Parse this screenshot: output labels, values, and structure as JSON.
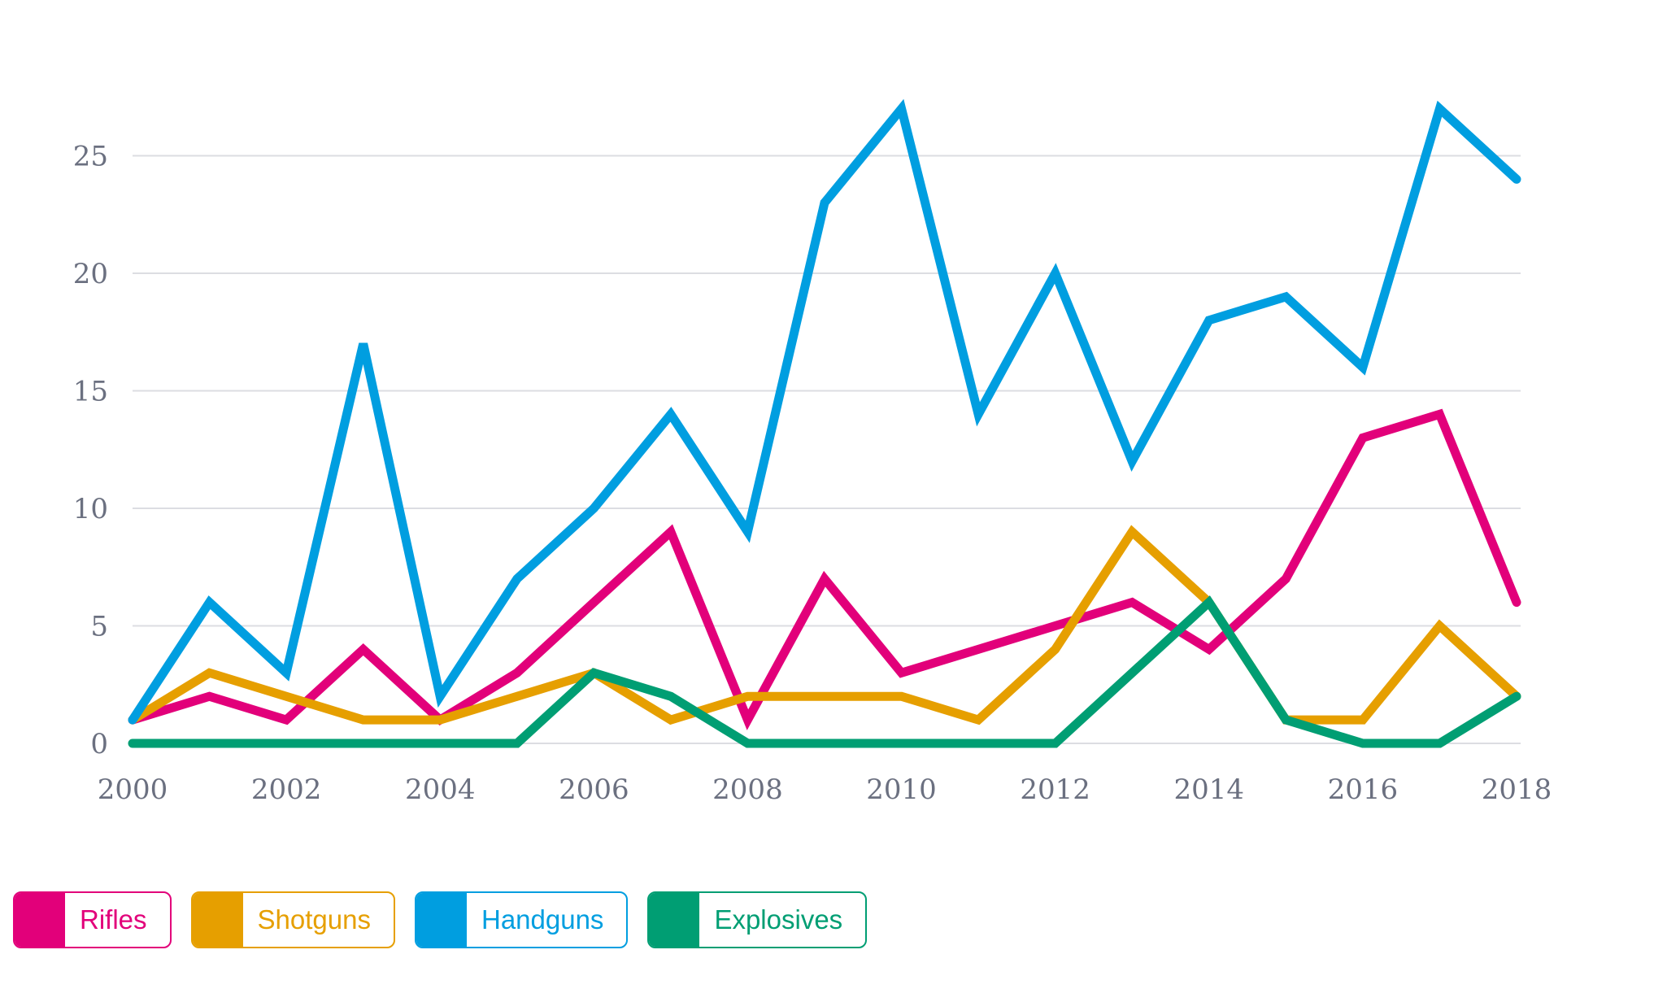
{
  "chart_data": {
    "type": "line",
    "title": "",
    "xlabel": "",
    "ylabel": "",
    "x": [
      2000,
      2001,
      2002,
      2003,
      2004,
      2005,
      2006,
      2007,
      2008,
      2009,
      2010,
      2011,
      2012,
      2013,
      2014,
      2015,
      2016,
      2017,
      2018
    ],
    "x_ticks": [
      "2000",
      "2002",
      "2004",
      "2006",
      "2008",
      "2010",
      "2012",
      "2014",
      "2016",
      "2018"
    ],
    "y_ticks": [
      "0",
      "5",
      "10",
      "15",
      "20",
      "25"
    ],
    "ylim": [
      0,
      27
    ],
    "xlim": [
      2000,
      2018
    ],
    "grid": "horizontal",
    "legend_position": "bottom-left",
    "series": [
      {
        "name": "Rifles",
        "color": "#e2007a",
        "values": [
          1,
          2,
          1,
          4,
          1,
          3,
          6,
          9,
          1,
          7,
          3,
          4,
          5,
          6,
          4,
          7,
          13,
          14,
          6
        ]
      },
      {
        "name": "Shotguns",
        "color": "#e69f00",
        "values": [
          1,
          3,
          2,
          1,
          1,
          2,
          3,
          1,
          2,
          2,
          2,
          1,
          4,
          9,
          6,
          1,
          1,
          5,
          2
        ]
      },
      {
        "name": "Handguns",
        "color": "#009ee0",
        "values": [
          1,
          6,
          3,
          17,
          2,
          7,
          10,
          14,
          9,
          23,
          27,
          14,
          20,
          12,
          18,
          19,
          16,
          27,
          24
        ]
      },
      {
        "name": "Explosives",
        "color": "#009e73",
        "values": [
          0,
          0,
          0,
          0,
          0,
          0,
          3,
          2,
          0,
          0,
          0,
          0,
          0,
          3,
          6,
          1,
          0,
          0,
          2
        ]
      }
    ]
  }
}
